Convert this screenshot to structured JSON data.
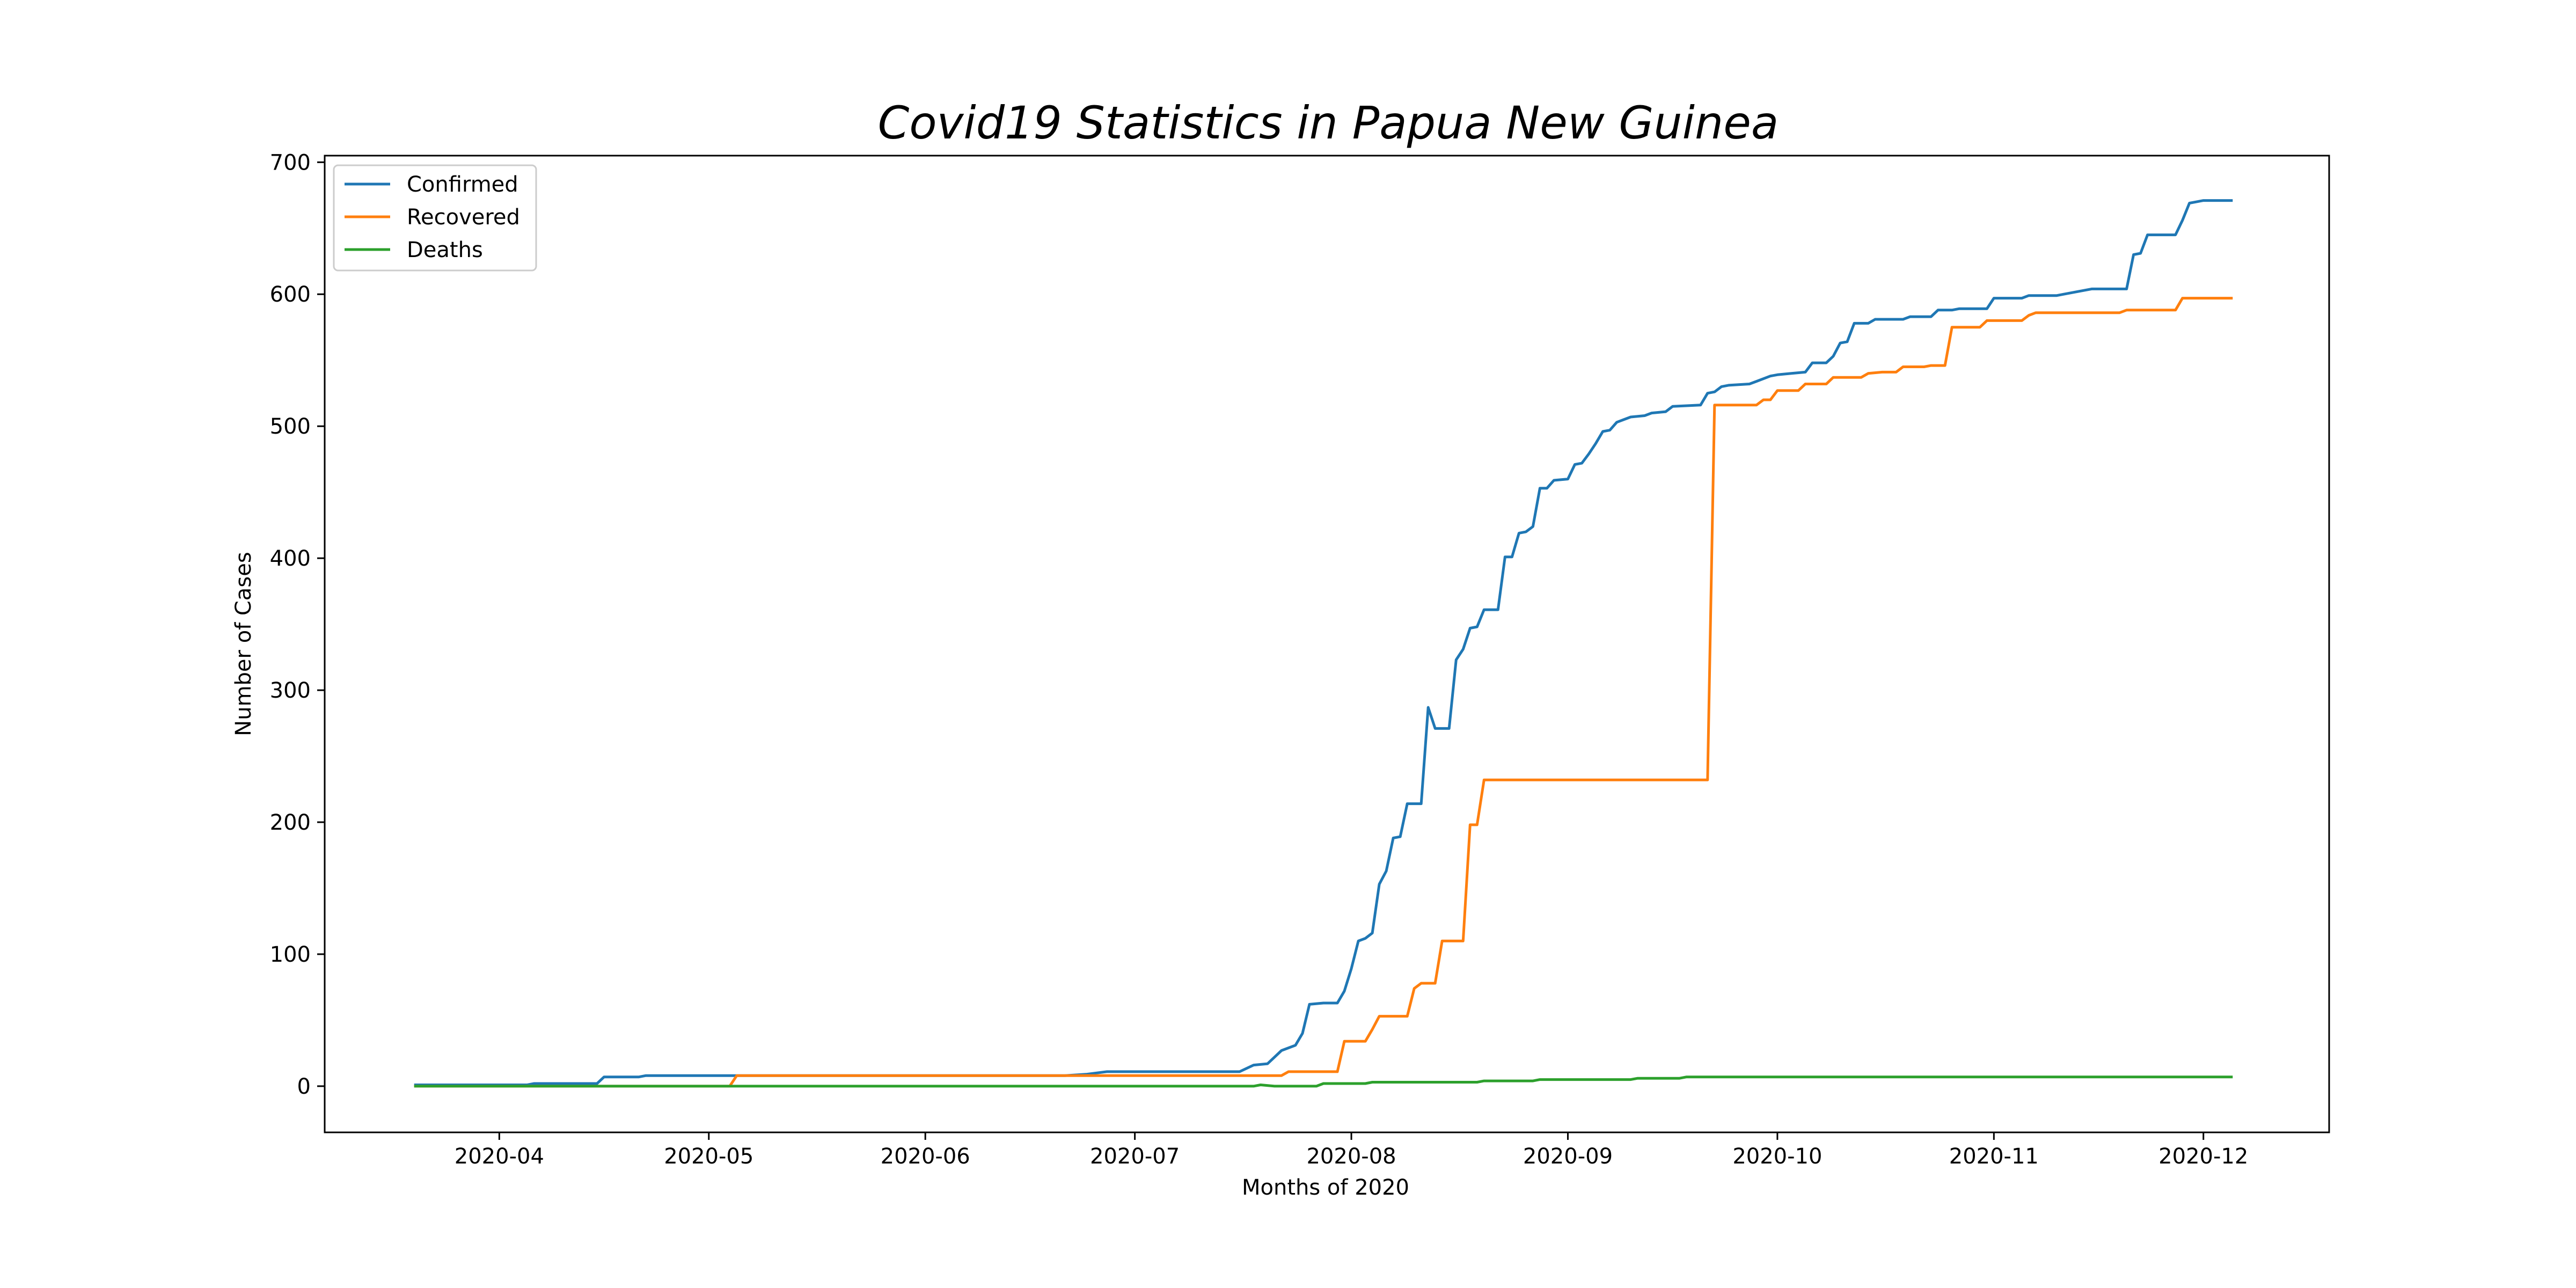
{
  "chart_data": {
    "type": "line",
    "title": "Covid19 Statistics in Papua New Guinea",
    "xlabel": "Months of 2020",
    "ylabel": "Number of Cases",
    "ylim": [
      -35,
      705
    ],
    "xlim": [
      "2020-03-07",
      "2020-12-19"
    ],
    "yticks": [
      0,
      100,
      200,
      300,
      400,
      500,
      600,
      700
    ],
    "xticks": [
      "2020-04",
      "2020-05",
      "2020-06",
      "2020-07",
      "2020-08",
      "2020-09",
      "2020-10",
      "2020-11",
      "2020-12"
    ],
    "grid": false,
    "legend_position": "upper-left",
    "series": [
      {
        "name": "Confirmed",
        "color": "#1f77b4",
        "points": [
          [
            "2020-03-20",
            1
          ],
          [
            "2020-04-05",
            1
          ],
          [
            "2020-04-06",
            2
          ],
          [
            "2020-04-15",
            2
          ],
          [
            "2020-04-16",
            7
          ],
          [
            "2020-04-21",
            7
          ],
          [
            "2020-04-22",
            8
          ],
          [
            "2020-05-05",
            8
          ],
          [
            "2020-06-21",
            8
          ],
          [
            "2020-06-24",
            9
          ],
          [
            "2020-06-27",
            11
          ],
          [
            "2020-07-16",
            11
          ],
          [
            "2020-07-18",
            16
          ],
          [
            "2020-07-20",
            17
          ],
          [
            "2020-07-22",
            27
          ],
          [
            "2020-07-24",
            31
          ],
          [
            "2020-07-25",
            40
          ],
          [
            "2020-07-26",
            62
          ],
          [
            "2020-07-28",
            63
          ],
          [
            "2020-07-30",
            63
          ],
          [
            "2020-07-31",
            72
          ],
          [
            "2020-08-01",
            89
          ],
          [
            "2020-08-02",
            110
          ],
          [
            "2020-08-03",
            112
          ],
          [
            "2020-08-04",
            116
          ],
          [
            "2020-08-05",
            153
          ],
          [
            "2020-08-06",
            163
          ],
          [
            "2020-08-07",
            188
          ],
          [
            "2020-08-08",
            189
          ],
          [
            "2020-08-09",
            214
          ],
          [
            "2020-08-11",
            214
          ],
          [
            "2020-08-12",
            287
          ],
          [
            "2020-08-13",
            271
          ],
          [
            "2020-08-15",
            271
          ],
          [
            "2020-08-16",
            323
          ],
          [
            "2020-08-17",
            331
          ],
          [
            "2020-08-18",
            347
          ],
          [
            "2020-08-19",
            348
          ],
          [
            "2020-08-20",
            361
          ],
          [
            "2020-08-22",
            361
          ],
          [
            "2020-08-23",
            401
          ],
          [
            "2020-08-24",
            401
          ],
          [
            "2020-08-25",
            419
          ],
          [
            "2020-08-26",
            420
          ],
          [
            "2020-08-27",
            424
          ],
          [
            "2020-08-28",
            453
          ],
          [
            "2020-08-29",
            453
          ],
          [
            "2020-08-30",
            459
          ],
          [
            "2020-09-01",
            460
          ],
          [
            "2020-09-02",
            471
          ],
          [
            "2020-09-03",
            472
          ],
          [
            "2020-09-04",
            479
          ],
          [
            "2020-09-05",
            487
          ],
          [
            "2020-09-06",
            496
          ],
          [
            "2020-09-07",
            497
          ],
          [
            "2020-09-08",
            503
          ],
          [
            "2020-09-09",
            505
          ],
          [
            "2020-09-10",
            507
          ],
          [
            "2020-09-12",
            508
          ],
          [
            "2020-09-13",
            510
          ],
          [
            "2020-09-15",
            511
          ],
          [
            "2020-09-16",
            515
          ],
          [
            "2020-09-20",
            516
          ],
          [
            "2020-09-21",
            525
          ],
          [
            "2020-09-22",
            526
          ],
          [
            "2020-09-23",
            530
          ],
          [
            "2020-09-24",
            531
          ],
          [
            "2020-09-27",
            532
          ],
          [
            "2020-09-28",
            534
          ],
          [
            "2020-09-30",
            538
          ],
          [
            "2020-10-01",
            539
          ],
          [
            "2020-10-03",
            540
          ],
          [
            "2020-10-05",
            541
          ],
          [
            "2020-10-06",
            548
          ],
          [
            "2020-10-08",
            548
          ],
          [
            "2020-10-09",
            553
          ],
          [
            "2020-10-10",
            563
          ],
          [
            "2020-10-11",
            564
          ],
          [
            "2020-10-12",
            578
          ],
          [
            "2020-10-14",
            578
          ],
          [
            "2020-10-15",
            581
          ],
          [
            "2020-10-19",
            581
          ],
          [
            "2020-10-20",
            583
          ],
          [
            "2020-10-23",
            583
          ],
          [
            "2020-10-24",
            588
          ],
          [
            "2020-10-26",
            588
          ],
          [
            "2020-10-27",
            589
          ],
          [
            "2020-10-31",
            589
          ],
          [
            "2020-11-01",
            597
          ],
          [
            "2020-11-05",
            597
          ],
          [
            "2020-11-06",
            599
          ],
          [
            "2020-11-10",
            599
          ],
          [
            "2020-11-11",
            600
          ],
          [
            "2020-11-13",
            602
          ],
          [
            "2020-11-15",
            604
          ],
          [
            "2020-11-20",
            604
          ],
          [
            "2020-11-21",
            630
          ],
          [
            "2020-11-22",
            631
          ],
          [
            "2020-11-23",
            645
          ],
          [
            "2020-11-27",
            645
          ],
          [
            "2020-11-28",
            656
          ],
          [
            "2020-11-29",
            669
          ],
          [
            "2020-11-30",
            670
          ],
          [
            "2020-12-01",
            671
          ],
          [
            "2020-12-05",
            671
          ]
        ]
      },
      {
        "name": "Recovered",
        "color": "#ff7f0e",
        "points": [
          [
            "2020-03-20",
            0
          ],
          [
            "2020-05-04",
            0
          ],
          [
            "2020-05-05",
            8
          ],
          [
            "2020-07-20",
            8
          ],
          [
            "2020-07-22",
            8
          ],
          [
            "2020-07-23",
            11
          ],
          [
            "2020-07-30",
            11
          ],
          [
            "2020-07-31",
            34
          ],
          [
            "2020-08-03",
            34
          ],
          [
            "2020-08-04",
            43
          ],
          [
            "2020-08-05",
            53
          ],
          [
            "2020-08-09",
            53
          ],
          [
            "2020-08-10",
            74
          ],
          [
            "2020-08-11",
            78
          ],
          [
            "2020-08-13",
            78
          ],
          [
            "2020-08-14",
            110
          ],
          [
            "2020-08-17",
            110
          ],
          [
            "2020-08-18",
            198
          ],
          [
            "2020-08-19",
            198
          ],
          [
            "2020-08-20",
            232
          ],
          [
            "2020-09-21",
            232
          ],
          [
            "2020-09-22",
            516
          ],
          [
            "2020-09-28",
            516
          ],
          [
            "2020-09-29",
            520
          ],
          [
            "2020-09-30",
            520
          ],
          [
            "2020-10-01",
            527
          ],
          [
            "2020-10-04",
            527
          ],
          [
            "2020-10-05",
            532
          ],
          [
            "2020-10-08",
            532
          ],
          [
            "2020-10-09",
            537
          ],
          [
            "2020-10-13",
            537
          ],
          [
            "2020-10-14",
            540
          ],
          [
            "2020-10-16",
            541
          ],
          [
            "2020-10-18",
            541
          ],
          [
            "2020-10-19",
            545
          ],
          [
            "2020-10-22",
            545
          ],
          [
            "2020-10-23",
            546
          ],
          [
            "2020-10-25",
            546
          ],
          [
            "2020-10-26",
            575
          ],
          [
            "2020-10-30",
            575
          ],
          [
            "2020-10-31",
            580
          ],
          [
            "2020-11-05",
            580
          ],
          [
            "2020-11-06",
            584
          ],
          [
            "2020-11-07",
            586
          ],
          [
            "2020-11-19",
            586
          ],
          [
            "2020-11-20",
            588
          ],
          [
            "2020-11-27",
            588
          ],
          [
            "2020-11-28",
            597
          ],
          [
            "2020-12-05",
            597
          ]
        ]
      },
      {
        "name": "Deaths",
        "color": "#2ca02c",
        "points": [
          [
            "2020-03-20",
            0
          ],
          [
            "2020-07-18",
            0
          ],
          [
            "2020-07-19",
            1
          ],
          [
            "2020-07-21",
            0
          ],
          [
            "2020-07-27",
            0
          ],
          [
            "2020-07-28",
            2
          ],
          [
            "2020-08-03",
            2
          ],
          [
            "2020-08-04",
            3
          ],
          [
            "2020-08-19",
            3
          ],
          [
            "2020-08-20",
            4
          ],
          [
            "2020-08-27",
            4
          ],
          [
            "2020-08-28",
            5
          ],
          [
            "2020-09-10",
            5
          ],
          [
            "2020-09-11",
            6
          ],
          [
            "2020-09-17",
            6
          ],
          [
            "2020-09-18",
            7
          ],
          [
            "2020-12-05",
            7
          ]
        ]
      }
    ]
  }
}
